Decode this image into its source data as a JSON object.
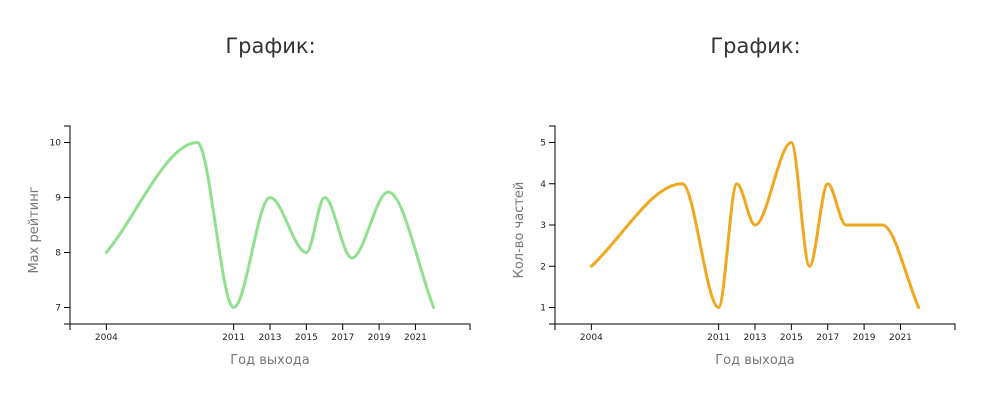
{
  "chart_data": [
    {
      "type": "line",
      "title": "График:",
      "xlabel": "Год выхода",
      "ylabel": "Max рейтинг",
      "x_ticks": [
        2004,
        2011,
        2013,
        2015,
        2017,
        2019,
        2021
      ],
      "y_ticks": [
        7,
        8,
        9,
        10
      ],
      "xlim": [
        2002,
        2024
      ],
      "ylim": [
        6.7,
        10.3
      ],
      "grid": false,
      "series": [
        {
          "color": "#90e090",
          "points": [
            [
              2004,
              8
            ],
            [
              2009,
              10
            ],
            [
              2011,
              7
            ],
            [
              2013,
              9
            ],
            [
              2015,
              8
            ],
            [
              2016,
              9
            ],
            [
              2017.5,
              7.9
            ],
            [
              2019.5,
              9.1
            ],
            [
              2022,
              7
            ]
          ]
        }
      ]
    },
    {
      "type": "line",
      "title": "График:",
      "xlabel": "Год выхода",
      "ylabel": "Кол-во частей",
      "x_ticks": [
        2004,
        2011,
        2013,
        2015,
        2017,
        2019,
        2021
      ],
      "y_ticks": [
        1,
        2,
        3,
        4,
        5
      ],
      "xlim": [
        2002,
        2024
      ],
      "ylim": [
        0.6,
        5.4
      ],
      "grid": false,
      "series": [
        {
          "color": "#f0a820",
          "points": [
            [
              2004,
              2
            ],
            [
              2009,
              4
            ],
            [
              2011,
              1
            ],
            [
              2012,
              4
            ],
            [
              2013,
              3
            ],
            [
              2015,
              5
            ],
            [
              2016,
              2
            ],
            [
              2017,
              4
            ],
            [
              2018,
              3
            ],
            [
              2020,
              3
            ],
            [
              2022,
              1
            ]
          ]
        }
      ]
    }
  ]
}
